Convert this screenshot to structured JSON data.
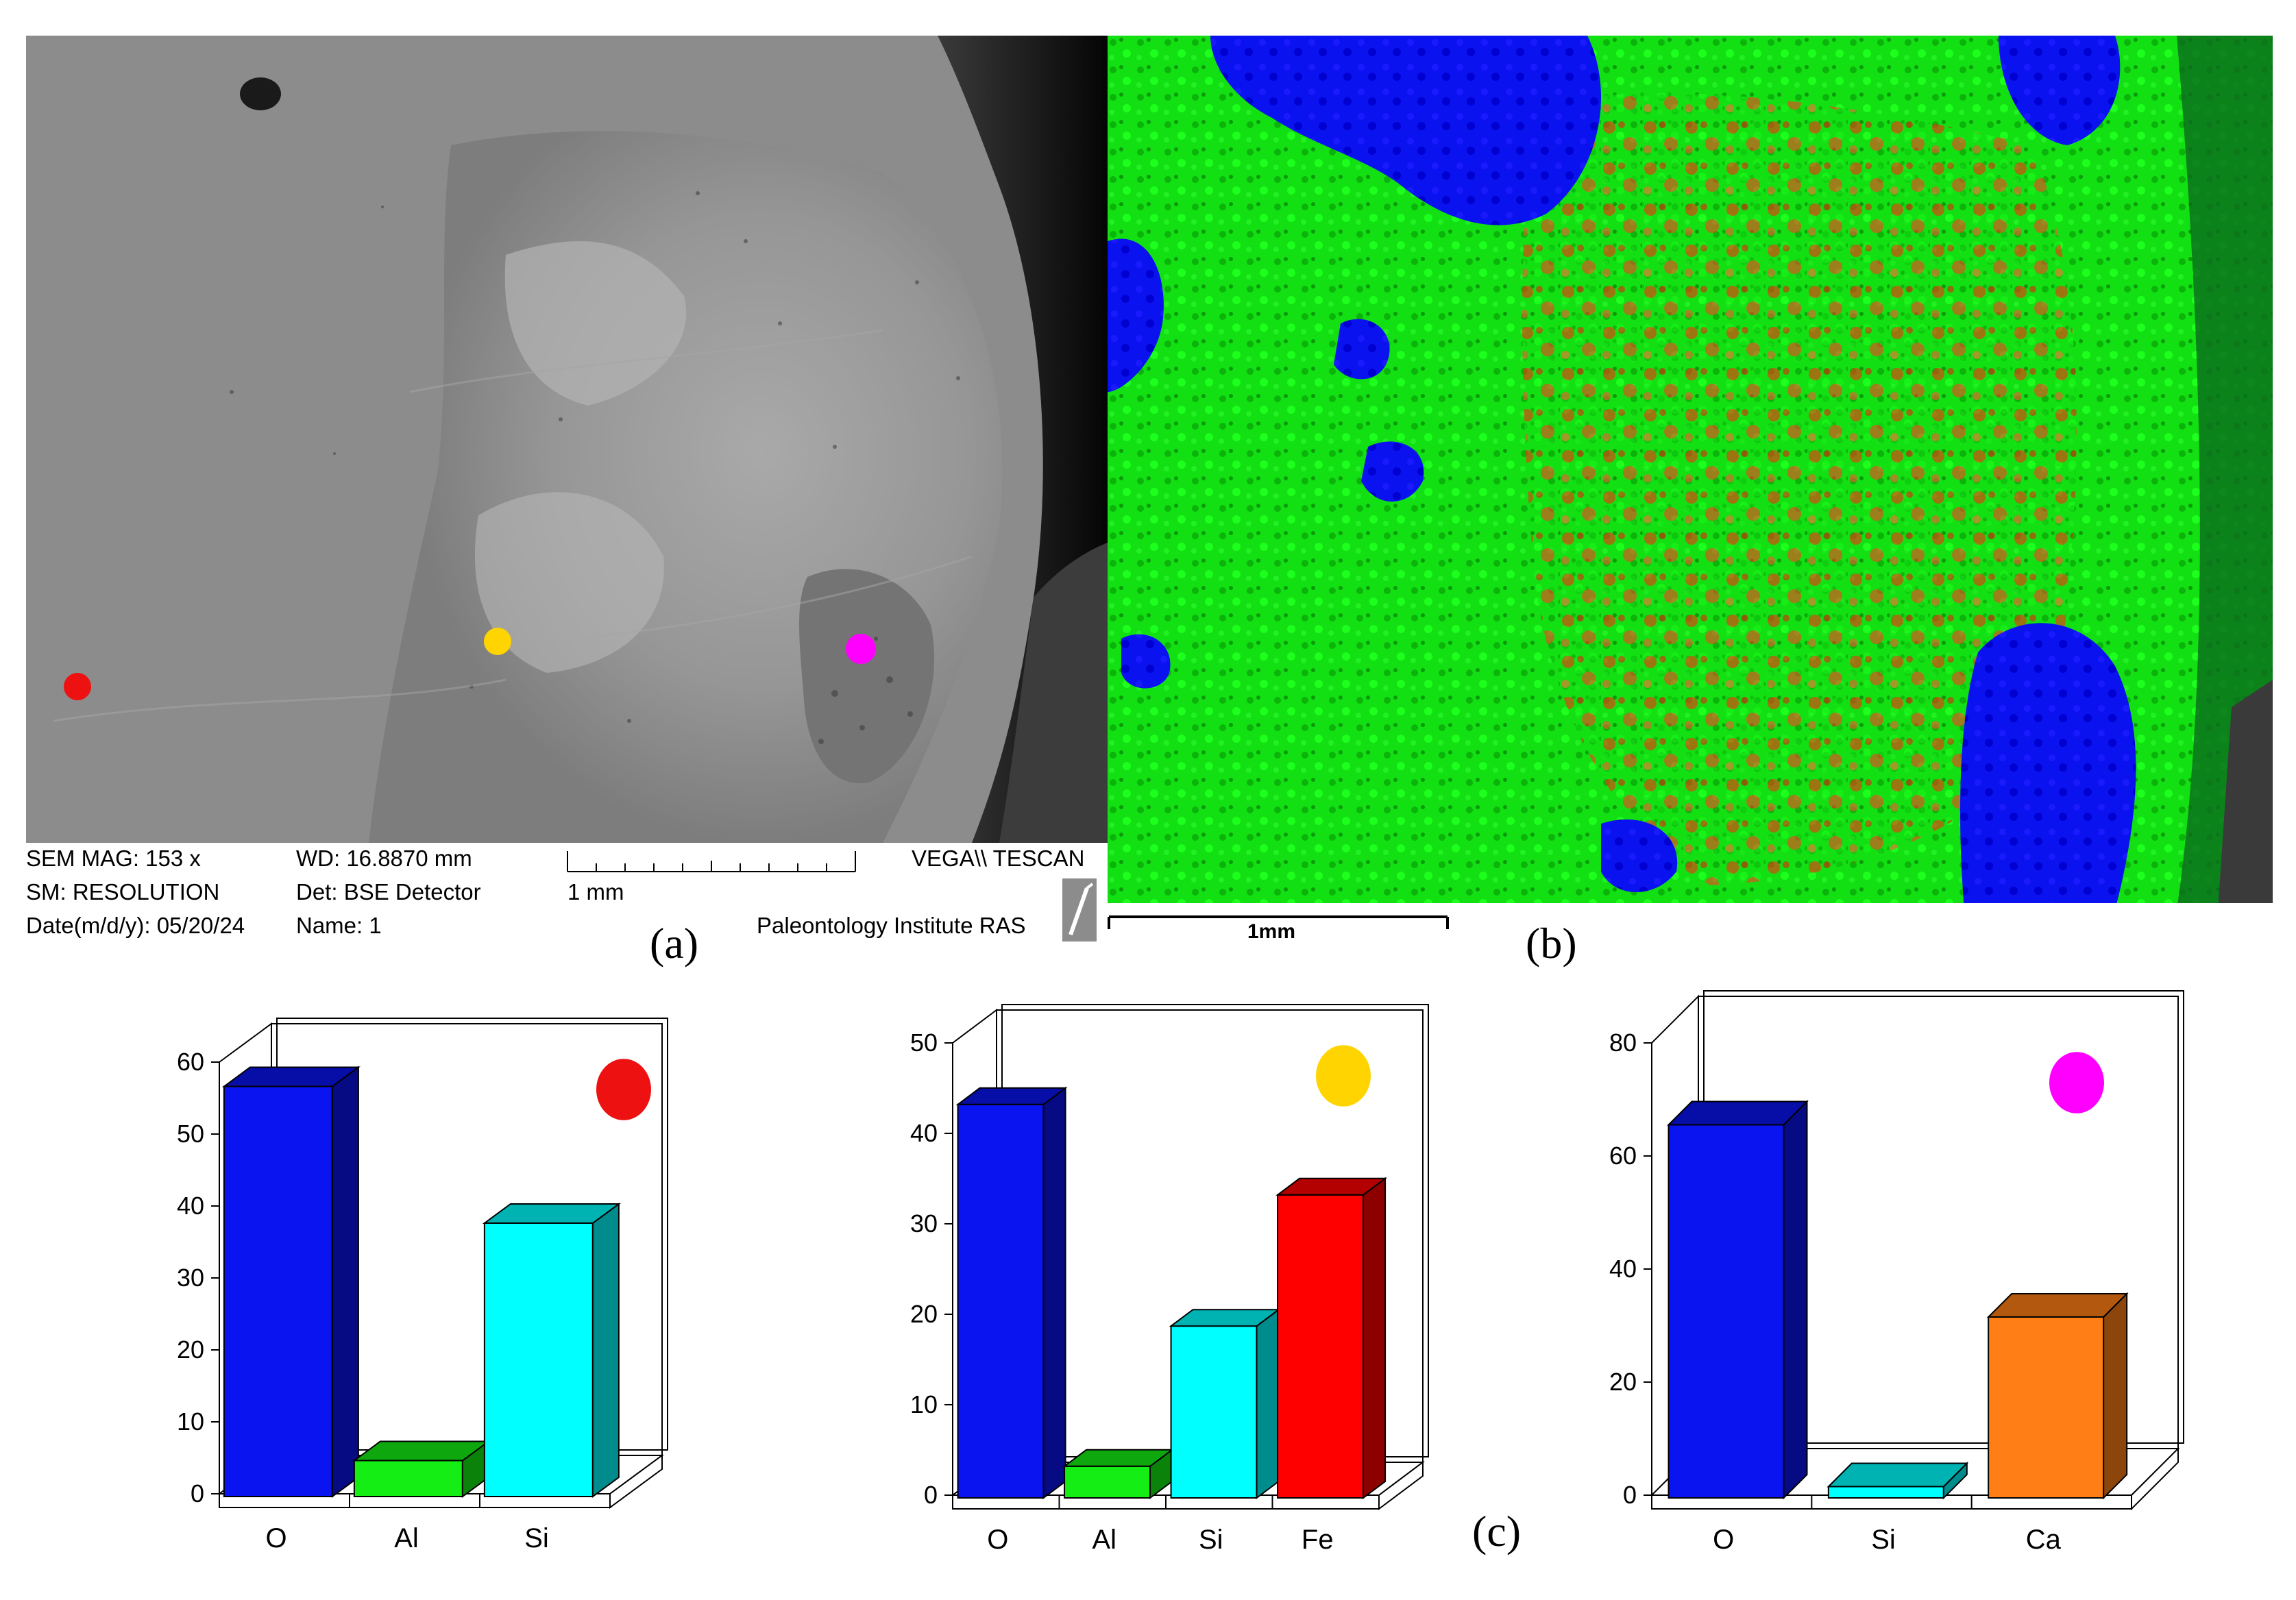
{
  "figure": {
    "panel_a": {
      "label": "(a)",
      "sem_mag": "SEM MAG: 153 x",
      "sm": "SM: RESOLUTION",
      "date": "Date(m/d/y): 05/20/24",
      "wd": "WD: 16.8870 mm",
      "det": "Det: BSE Detector",
      "name": "Name: 1",
      "scale_label": "1 mm",
      "vega": "VEGA\\\\ TESCAN",
      "institute": "Paleontology Institute RAS"
    },
    "panel_b": {
      "label": "(b)",
      "scale_label": "1mm"
    },
    "panel_c": {
      "label": "(c)"
    }
  },
  "colors": {
    "O": "#0a14f0",
    "Al": "#14ee14",
    "Si": "#00ffff",
    "Fe": "#ff0000",
    "Ca": "#ff7f16",
    "point_red": "#ee1111",
    "point_yellow": "#ffd400",
    "point_magenta": "#ff00ff"
  },
  "chart_data": [
    {
      "type": "bar",
      "title": "",
      "marker": "red",
      "categories": [
        "O",
        "Al",
        "Si"
      ],
      "values": [
        57,
        5,
        38
      ],
      "ylim": [
        0,
        60
      ],
      "yticks": [
        "0",
        "10",
        "20",
        "30",
        "40",
        "50",
        "60"
      ],
      "xlabel": "",
      "ylabel": ""
    },
    {
      "type": "bar",
      "title": "",
      "marker": "yellow",
      "categories": [
        "O",
        "Al",
        "Si",
        "Fe"
      ],
      "values": [
        43.5,
        3.5,
        19,
        33.5
      ],
      "ylim": [
        0,
        50
      ],
      "yticks": [
        "0",
        "10",
        "20",
        "30",
        "40",
        "50"
      ],
      "xlabel": "",
      "ylabel": ""
    },
    {
      "type": "bar",
      "title": "",
      "marker": "magenta",
      "categories": [
        "O",
        "Si",
        "Ca"
      ],
      "values": [
        66,
        2,
        32
      ],
      "ylim": [
        0,
        80
      ],
      "yticks": [
        "0",
        "20",
        "40",
        "60",
        "80"
      ],
      "xlabel": "",
      "ylabel": ""
    }
  ]
}
